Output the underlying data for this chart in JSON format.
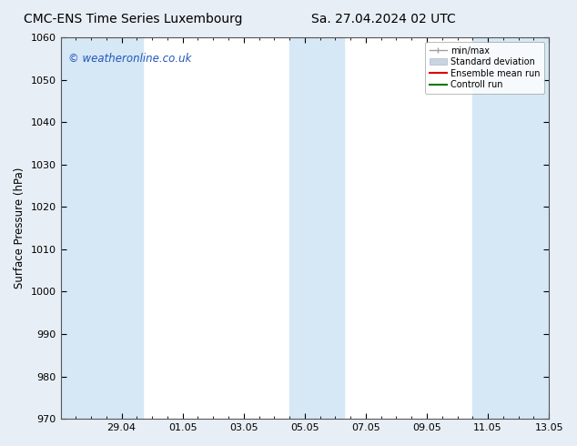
{
  "title": "CMC-ENS Time Series Luxembourg",
  "title2": "Sa. 27.04.2024 02 UTC",
  "ylabel": "Surface Pressure (hPa)",
  "background_color": "#e8eef5",
  "plot_bg_color": "#ffffff",
  "ylim": [
    970,
    1060
  ],
  "yticks": [
    970,
    980,
    990,
    1000,
    1010,
    1020,
    1030,
    1040,
    1050,
    1060
  ],
  "xtick_labels": [
    "29.04",
    "01.05",
    "03.05",
    "05.05",
    "07.05",
    "09.05",
    "11.05",
    "13.05"
  ],
  "shaded_color": "#d6e8f5",
  "legend_labels": [
    "min/max",
    "Standard deviation",
    "Ensemble mean run",
    "Controll run"
  ],
  "legend_minmax_color": "#a0a0a0",
  "legend_std_color": "#c8d4e0",
  "legend_ens_color": "#dd0000",
  "legend_ctrl_color": "#007700",
  "watermark": "© weatheronline.co.uk",
  "watermark_color": "#2255bb",
  "title_fontsize": 10,
  "label_fontsize": 8.5,
  "tick_fontsize": 8,
  "watermark_fontsize": 8.5
}
